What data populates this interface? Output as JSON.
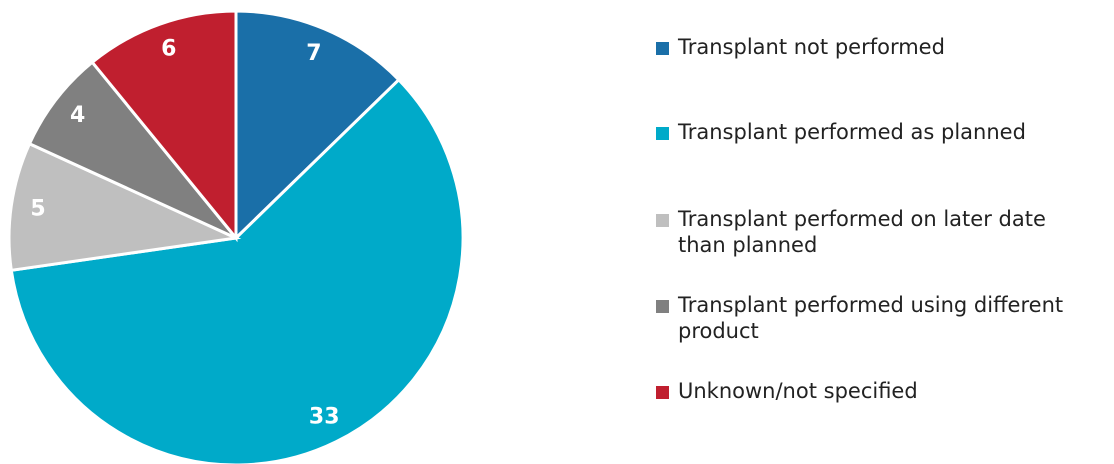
{
  "chart_data": {
    "type": "pie",
    "categories": [
      "Transplant not performed",
      "Transplant performed as planned",
      "Transplant performed on later date than planned",
      "Transplant performed using different product",
      "Unknown/not specified"
    ],
    "values": [
      7,
      33,
      5,
      4,
      6
    ],
    "colors": [
      "#1a6fa8",
      "#00aac9",
      "#bfbfbf",
      "#808080",
      "#c01f2f"
    ],
    "legend": "right"
  }
}
